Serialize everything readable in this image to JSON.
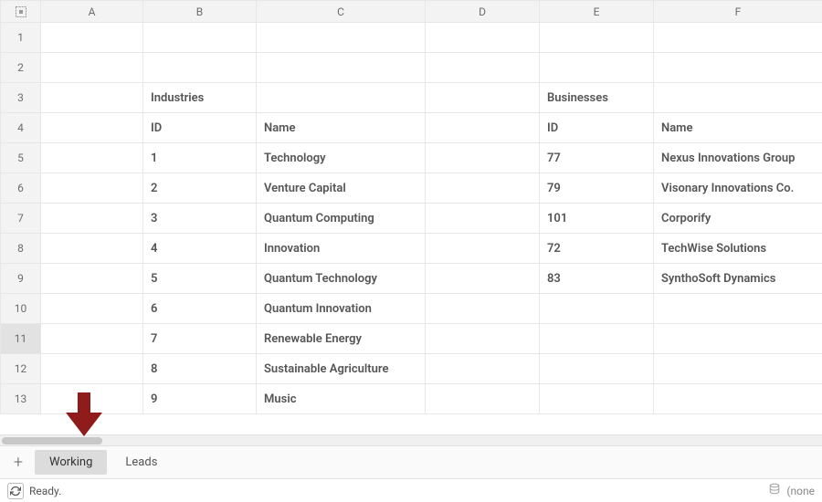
{
  "columns": [
    "A",
    "B",
    "C",
    "D",
    "E",
    "F"
  ],
  "visible_rows": 13,
  "selected_row": 11,
  "headers": {
    "industries_label": "Industries",
    "businesses_label": "Businesses",
    "id_label": "ID",
    "name_label": "Name"
  },
  "industries": [
    {
      "id": "1",
      "name": "Technology"
    },
    {
      "id": "2",
      "name": "Venture Capital"
    },
    {
      "id": "3",
      "name": "Quantum Computing"
    },
    {
      "id": "4",
      "name": "Innovation"
    },
    {
      "id": "5",
      "name": "Quantum Technology"
    },
    {
      "id": "6",
      "name": "Quantum Innovation"
    },
    {
      "id": "7",
      "name": "Renewable Energy"
    },
    {
      "id": "8",
      "name": "Sustainable Agriculture"
    },
    {
      "id": "9",
      "name": "Music"
    }
  ],
  "businesses": [
    {
      "id": "77",
      "name": "Nexus Innovations Group"
    },
    {
      "id": "79",
      "name": "Visonary Innovations Co."
    },
    {
      "id": "101",
      "name": "Corporify"
    },
    {
      "id": "72",
      "name": "TechWise Solutions"
    },
    {
      "id": "83",
      "name": "SynthoSoft Dynamics"
    }
  ],
  "tabs": {
    "items": [
      "Working",
      "Leads"
    ],
    "active_index": 0
  },
  "status": {
    "text": "Ready.",
    "right_text": "(none"
  },
  "style": {
    "header_bg": "#f3f3f3",
    "grid_border": "#e7e7e7",
    "text_color": "#555555",
    "muted_color": "#6d6d6d",
    "active_tab_bg": "#dcdcdc",
    "arrow_color": "#8f1b1b"
  }
}
